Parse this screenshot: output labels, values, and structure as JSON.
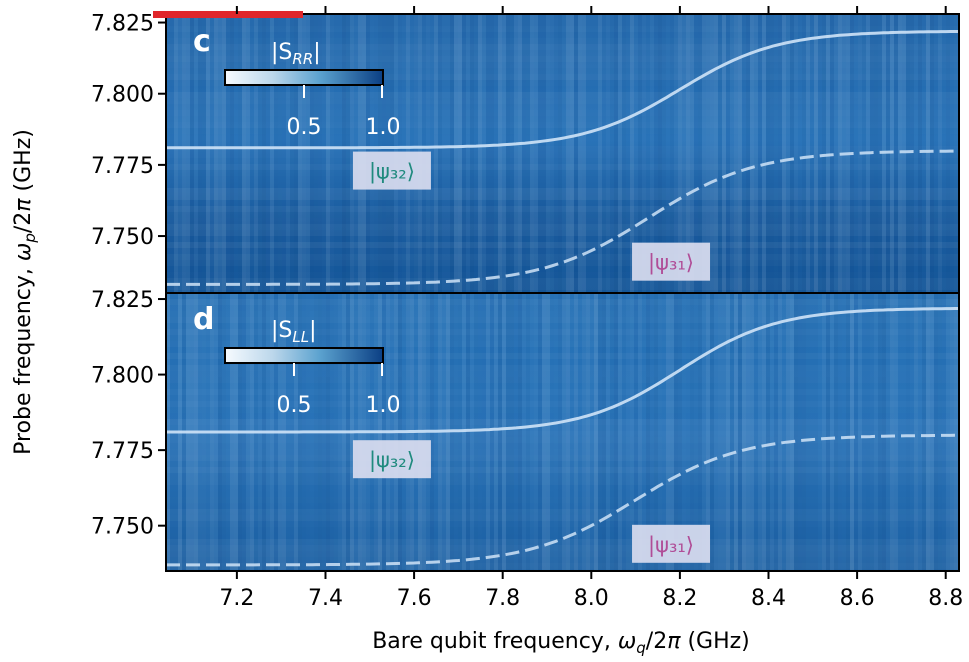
{
  "colors": {
    "background_dark": "#14579a",
    "background_mid": "#2a73b8",
    "line_color": "#cfe3f7",
    "label_box": "#d9dcef",
    "psi32_text": "#1f8a7e",
    "psi31_text": "#b04d97",
    "red_marker": "#e0262b"
  },
  "chart_data": [
    {
      "type": "heatmap",
      "panel_letter": "c",
      "colorbar": {
        "label": "|S_RR|",
        "ticks": [
          "0.5",
          "1.0"
        ],
        "range": [
          0,
          1.0
        ]
      },
      "xlim": [
        7.04,
        8.83
      ],
      "ylim": [
        7.73,
        7.828
      ],
      "yticks": [
        "7.825",
        "7.800",
        "7.775",
        "7.750"
      ],
      "upper_branch": {
        "lo": 7.781,
        "hi": 7.822,
        "center": 8.2,
        "width": 0.11
      },
      "lower_branch": {
        "lo": 7.733,
        "hi": 7.78,
        "center": 8.13,
        "width": 0.12
      },
      "state_labels": [
        {
          "text": "|ψ₃₂⟩",
          "x": 7.55,
          "y": 7.773
        },
        {
          "text": "|ψ₃₁⟩",
          "x": 8.18,
          "y": 7.741
        }
      ]
    },
    {
      "type": "heatmap",
      "panel_letter": "d",
      "colorbar": {
        "label": "|S_LL|",
        "ticks": [
          "0.5",
          "1.0"
        ],
        "range": [
          0,
          1.0
        ]
      },
      "xlim": [
        7.04,
        8.83
      ],
      "ylim": [
        7.735,
        7.827
      ],
      "yticks": [
        "7.825",
        "7.800",
        "7.775",
        "7.750"
      ],
      "xticks": [
        "7.2",
        "7.4",
        "7.6",
        "7.8",
        "8.0",
        "8.2",
        "8.4",
        "8.6",
        "8.8"
      ],
      "xlabel": "Bare qubit frequency, ω_q/2π (GHz)",
      "upper_branch": {
        "lo": 7.781,
        "hi": 7.822,
        "center": 8.2,
        "width": 0.11
      },
      "lower_branch": {
        "lo": 7.737,
        "hi": 7.78,
        "center": 8.1,
        "width": 0.12
      },
      "state_labels": [
        {
          "text": "|ψ₃₂⟩",
          "x": 7.55,
          "y": 7.772
        },
        {
          "text": "|ψ₃₁⟩",
          "x": 8.18,
          "y": 7.744
        }
      ]
    }
  ],
  "ylabel": "Probe frequency, ω_p/2π (GHz)"
}
